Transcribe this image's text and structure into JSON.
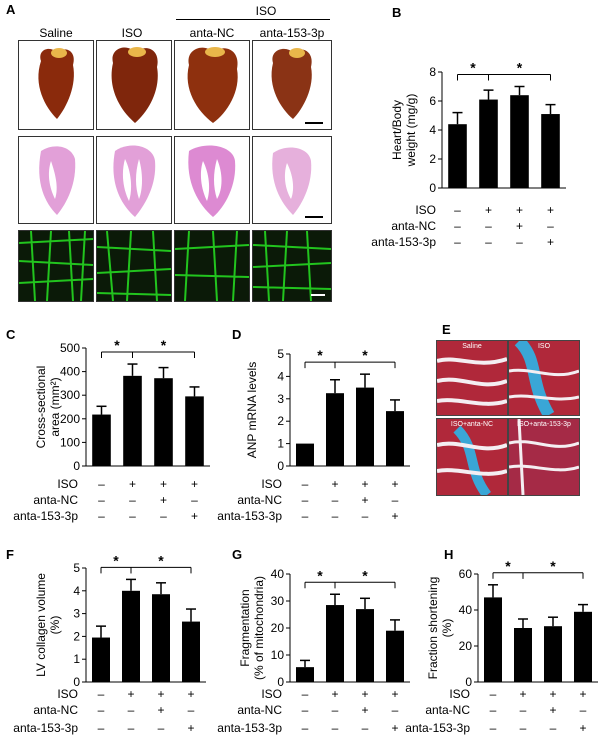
{
  "panel_letters": {
    "a": "A",
    "b": "B",
    "c": "C",
    "d": "D",
    "e": "E",
    "f": "F",
    "g": "G",
    "h": "H"
  },
  "panel_a": {
    "col_headers": [
      "Saline",
      "ISO",
      "anta-NC",
      "anta-153-3p"
    ],
    "group_header": "ISO",
    "colors": {
      "heart": "#8a2a0c",
      "he_stain": "#e2a0d8",
      "wga": "#22c41e",
      "wga_bg": "#0b1a08"
    }
  },
  "panel_e": {
    "tile_titles": [
      "Saline",
      "ISO",
      "ISO+anta-NC",
      "ISO+anta-153-3p"
    ],
    "colors": {
      "muscle": "#b0283a",
      "collagen": "#3aa6d6",
      "space": "#f4eef2"
    }
  },
  "condition_rows": {
    "labels": [
      "ISO",
      "anta-NC",
      "anta-153-3p"
    ],
    "signs": [
      [
        "–",
        "+",
        "+",
        "+"
      ],
      [
        "–",
        "–",
        "+",
        "–"
      ],
      [
        "–",
        "–",
        "–",
        "+"
      ]
    ]
  },
  "chart_data": [
    {
      "id": "B",
      "type": "bar",
      "categories": [
        "Saline",
        "ISO",
        "ISO+anta-NC",
        "ISO+anta-153-3p"
      ],
      "values": [
        4.4,
        6.1,
        6.4,
        5.1
      ],
      "errors": [
        0.8,
        0.65,
        0.6,
        0.65
      ],
      "ylabel": [
        "Heart/Body",
        "weight (mg/g)"
      ],
      "ylim": [
        0,
        8
      ],
      "yticks": [
        0,
        2,
        4,
        6,
        8
      ],
      "significance": [
        {
          "from": 0,
          "to": 1,
          "label": "*"
        },
        {
          "from": 1,
          "to": 3,
          "label": "*"
        }
      ]
    },
    {
      "id": "C",
      "type": "bar",
      "categories": [
        "Saline",
        "ISO",
        "ISO+anta-NC",
        "ISO+anta-153-3p"
      ],
      "values": [
        218,
        382,
        372,
        295
      ],
      "errors": [
        35,
        50,
        45,
        40
      ],
      "ylabel": [
        "Cross-sectional",
        "area (mm²)"
      ],
      "ylim": [
        0,
        500
      ],
      "yticks": [
        0,
        100,
        200,
        300,
        400,
        500
      ],
      "significance": [
        {
          "from": 0,
          "to": 1,
          "label": "*"
        },
        {
          "from": 1,
          "to": 3,
          "label": "*"
        }
      ]
    },
    {
      "id": "D",
      "type": "bar",
      "categories": [
        "Saline",
        "ISO",
        "ISO+anta-NC",
        "ISO+anta-153-3p"
      ],
      "values": [
        1.0,
        3.25,
        3.5,
        2.45
      ],
      "errors": [
        0,
        0.6,
        0.6,
        0.5
      ],
      "ylabel": [
        "ANP mRNA levels"
      ],
      "ylim": [
        0,
        5
      ],
      "yticks": [
        0,
        1,
        2,
        3,
        4,
        5
      ],
      "significance": [
        {
          "from": 0,
          "to": 1,
          "label": "*"
        },
        {
          "from": 1,
          "to": 3,
          "label": "*"
        }
      ]
    },
    {
      "id": "F",
      "type": "bar",
      "categories": [
        "Saline",
        "ISO",
        "ISO+anta-NC",
        "ISO+anta-153-3p"
      ],
      "values": [
        1.95,
        4.0,
        3.85,
        2.65
      ],
      "errors": [
        0.5,
        0.5,
        0.5,
        0.55
      ],
      "ylabel": [
        "LV collagen volume",
        "(%)"
      ],
      "ylim": [
        0,
        5
      ],
      "yticks": [
        0,
        1,
        2,
        3,
        4,
        5
      ],
      "significance": [
        {
          "from": 0,
          "to": 1,
          "label": "*"
        },
        {
          "from": 1,
          "to": 3,
          "label": "*"
        }
      ]
    },
    {
      "id": "G",
      "type": "bar",
      "categories": [
        "Saline",
        "ISO",
        "ISO+anta-NC",
        "ISO+anta-153-3p"
      ],
      "values": [
        5.5,
        28.5,
        27.0,
        19.0
      ],
      "errors": [
        2.5,
        4,
        4,
        4
      ],
      "ylabel": [
        "Fragmentation",
        "(% of mitochondria)"
      ],
      "ylim": [
        0,
        40
      ],
      "yticks": [
        0,
        10,
        20,
        30,
        40
      ],
      "significance": [
        {
          "from": 0,
          "to": 1,
          "label": "*"
        },
        {
          "from": 1,
          "to": 3,
          "label": "*"
        }
      ]
    },
    {
      "id": "H",
      "type": "bar",
      "categories": [
        "Saline",
        "ISO",
        "ISO+anta-NC",
        "ISO+anta-153-3p"
      ],
      "values": [
        47,
        30,
        31,
        39
      ],
      "errors": [
        7,
        5,
        5,
        4
      ],
      "ylabel": [
        "Fraction shortening",
        "(%)"
      ],
      "ylim": [
        0,
        60
      ],
      "yticks": [
        0,
        20,
        40,
        60
      ],
      "significance": [
        {
          "from": 0,
          "to": 1,
          "label": "*"
        },
        {
          "from": 1,
          "to": 3,
          "label": "*"
        }
      ]
    }
  ]
}
